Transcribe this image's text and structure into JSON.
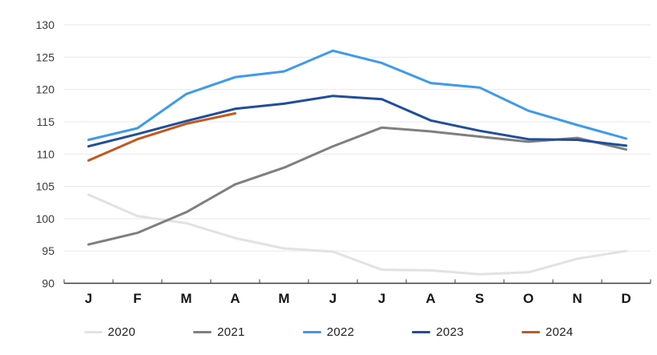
{
  "chart_data": {
    "type": "line",
    "title": "",
    "xlabel": "",
    "ylabel": "",
    "categories": [
      "J",
      "F",
      "M",
      "A",
      "M",
      "J",
      "J",
      "A",
      "S",
      "O",
      "N",
      "D"
    ],
    "y_ticks": [
      90,
      95,
      100,
      105,
      110,
      115,
      120,
      125,
      130
    ],
    "ylim": [
      90,
      130
    ],
    "grid": "horizontal",
    "legend_position": "bottom",
    "series": [
      {
        "name": "2020",
        "color": "#E2E2E2",
        "values": [
          103.7,
          100.4,
          99.3,
          97.0,
          95.4,
          94.9,
          92.1,
          92.0,
          91.4,
          91.7,
          93.8,
          95.0
        ]
      },
      {
        "name": "2021",
        "color": "#7F7F7F",
        "values": [
          96.0,
          97.8,
          101.0,
          105.3,
          107.9,
          111.2,
          114.1,
          113.5,
          112.7,
          111.9,
          112.5,
          110.7
        ]
      },
      {
        "name": "2022",
        "color": "#3D9BE9",
        "values": [
          112.2,
          114.0,
          119.3,
          121.9,
          122.8,
          126.0,
          124.1,
          121.0,
          120.3,
          116.7,
          114.5,
          112.4
        ]
      },
      {
        "name": "2023",
        "color": "#1F4E9B",
        "values": [
          111.2,
          113.1,
          115.1,
          117.0,
          117.8,
          119.0,
          118.5,
          115.2,
          113.6,
          112.3,
          112.2,
          111.3
        ]
      },
      {
        "name": "2024",
        "color": "#C4571E",
        "values": [
          109.0,
          112.3,
          114.7,
          116.3
        ]
      }
    ],
    "colors": {
      "axis": "#3d3d3d",
      "gridline": "#E9E9E9",
      "y_tick_label": "#3a3a3a",
      "x_tick_label": "#161616",
      "background": "#ffffff"
    }
  }
}
